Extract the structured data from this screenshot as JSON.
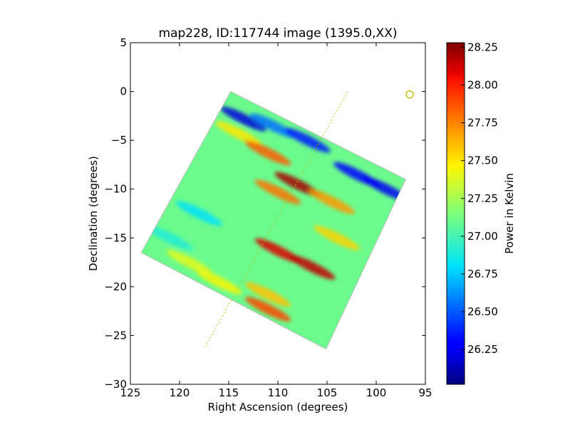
{
  "chart_data": {
    "type": "heatmap",
    "title": "map228, ID:117744 image (1395.0,XX)",
    "xlabel": "Right Ascension (degrees)",
    "ylabel": "Declination (degrees)",
    "xlim": [
      125,
      95
    ],
    "ylim": [
      -30,
      5
    ],
    "x_ticks": [
      "125",
      "120",
      "115",
      "110",
      "105",
      "100",
      "95"
    ],
    "y_ticks": [
      "5",
      "0",
      "−5",
      "−10",
      "−15",
      "−20",
      "−25",
      "−30"
    ],
    "colorbar": {
      "label": "Power in Kelvin",
      "range": [
        26.02,
        28.28
      ],
      "ticks": [
        "28.25",
        "28.00",
        "27.75",
        "27.50",
        "27.25",
        "27.00",
        "26.75",
        "26.50",
        "26.25"
      ],
      "colormap": "jet"
    },
    "map_footprint_corners": [
      [
        114.8,
        0.0
      ],
      [
        97.0,
        -9.0
      ],
      [
        105.1,
        -26.4
      ],
      [
        123.9,
        -16.5
      ]
    ],
    "background_level": 27.1,
    "features": [
      {
        "ra": 113.5,
        "dec": -2.8,
        "value": 26.2
      },
      {
        "ra": 110.5,
        "dec": -3.5,
        "value": 26.55
      },
      {
        "ra": 107.0,
        "dec": -5.0,
        "value": 26.35
      },
      {
        "ra": 102.0,
        "dec": -8.5,
        "value": 26.3
      },
      {
        "ra": 99.0,
        "dec": -10.0,
        "value": 26.25
      },
      {
        "ra": 114.0,
        "dec": -4.3,
        "value": 27.5
      },
      {
        "ra": 111.0,
        "dec": -6.3,
        "value": 27.85
      },
      {
        "ra": 108.0,
        "dec": -9.5,
        "value": 28.2
      },
      {
        "ra": 110.0,
        "dec": -10.3,
        "value": 27.8
      },
      {
        "ra": 104.5,
        "dec": -11.3,
        "value": 27.7
      },
      {
        "ra": 118.0,
        "dec": -12.5,
        "value": 26.8
      },
      {
        "ra": 110.0,
        "dec": -16.3,
        "value": 28.1
      },
      {
        "ra": 106.5,
        "dec": -18.0,
        "value": 28.15
      },
      {
        "ra": 111.0,
        "dec": -20.8,
        "value": 27.6
      },
      {
        "ra": 111.0,
        "dec": -22.3,
        "value": 27.9
      },
      {
        "ra": 116.0,
        "dec": -19.5,
        "value": 27.45
      },
      {
        "ra": 121.0,
        "dec": -15.0,
        "value": 26.9
      },
      {
        "ra": 119.0,
        "dec": -17.5,
        "value": 27.4
      },
      {
        "ra": 104.0,
        "dec": -15.0,
        "value": 27.55
      }
    ],
    "trajectory_line": {
      "start": [
        102.9,
        0.0
      ],
      "end": [
        117.4,
        -26.2
      ],
      "style": "dotted",
      "color": "#bfbf00"
    },
    "source_marker": {
      "ra": 96.6,
      "dec": -0.3,
      "shape": "circle",
      "color": "#bfbf00"
    },
    "grid": false
  }
}
